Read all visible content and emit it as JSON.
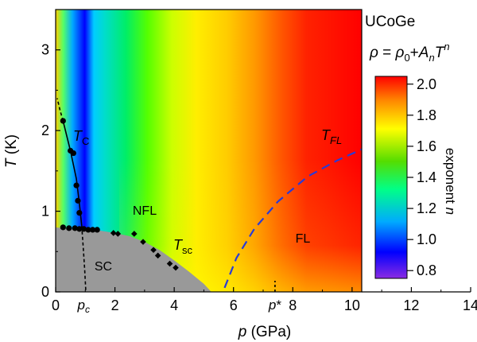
{
  "chart_data": {
    "type": "heatmap",
    "title": "UCoGe",
    "formula": {
      "rho": "ρ",
      "eq": " = ",
      "rho0": "ρ",
      "sub0": "0",
      "plus": "+",
      "A": "A",
      "subn": "n",
      "T": "T",
      "supn": "n"
    },
    "xlabel": {
      "var": "p",
      "unit": " (GPa)"
    },
    "ylabel": {
      "var": "T",
      "unit": " (K)"
    },
    "xlim": [
      0,
      14
    ],
    "ylim": [
      0,
      3.5
    ],
    "xticks": [
      "0",
      "2",
      "4",
      "6",
      "8",
      "10",
      "12",
      "14"
    ],
    "yticks": [
      "0",
      "1",
      "2",
      "3"
    ],
    "colorbar": {
      "label": {
        "text": "exponent ",
        "var": "n"
      },
      "range": [
        0.75,
        2.05
      ],
      "ticks": [
        "0.8",
        "1.0",
        "1.2",
        "1.4",
        "1.6",
        "1.8",
        "2.0"
      ],
      "tick_values": [
        0.8,
        1.0,
        1.2,
        1.4,
        1.6,
        1.8,
        2.0
      ],
      "colors": [
        "#8a2be2",
        "#0000ff",
        "#00aaff",
        "#00ff88",
        "#55dd00",
        "#ffff00",
        "#ff8800",
        "#ff0000"
      ]
    },
    "regions": {
      "sc": "SC",
      "nfl": "NFL",
      "fl": "FL"
    },
    "curve_labels": {
      "tc": {
        "main": "T",
        "sub": "C"
      },
      "tsc": {
        "main": "T",
        "sub": "sc"
      },
      "tfl": {
        "main": "T",
        "sub": "FL"
      }
    },
    "markers": {
      "pc": {
        "main": "p",
        "sub": "c",
        "x": 1.0
      },
      "pstar": {
        "main": "p",
        "sup": "*",
        "x": 7.4
      }
    },
    "series": [
      {
        "kind": "tc_points",
        "x": [
          0.25,
          0.5,
          0.6,
          0.7,
          0.75,
          0.8
        ],
        "y": [
          2.12,
          1.75,
          1.72,
          1.32,
          1.13,
          0.98
        ]
      },
      {
        "kind": "tc_fit",
        "x": [
          0.25,
          0.5,
          0.7,
          0.8,
          0.88
        ],
        "y": [
          2.12,
          1.75,
          1.4,
          1.1,
          0.82
        ]
      },
      {
        "kind": "tsc_points_low",
        "x": [
          0.25,
          0.45,
          0.65,
          0.8,
          0.95,
          1.1,
          1.25,
          1.4
        ],
        "y": [
          0.8,
          0.79,
          0.79,
          0.78,
          0.78,
          0.77,
          0.77,
          0.77
        ]
      },
      {
        "kind": "tsc_points_high",
        "x": [
          1.95,
          2.1,
          2.65,
          2.95,
          3.3,
          3.45,
          3.85,
          4.05
        ],
        "y": [
          0.73,
          0.72,
          0.72,
          0.62,
          0.52,
          0.45,
          0.35,
          0.3
        ]
      }
    ],
    "dashed_lines": {
      "tc_ext_high": {
        "x": [
          0.25,
          0.15,
          0.05
        ],
        "y": [
          2.12,
          2.25,
          2.4
        ]
      },
      "tc_ext_low": {
        "x": [
          0.88,
          0.93,
          0.98,
          1.02
        ],
        "y": [
          0.82,
          0.55,
          0.28,
          0.0
        ]
      },
      "tfl": {
        "x": [
          5.7,
          6.1,
          6.7,
          7.5,
          8.5,
          9.5,
          10.4
        ],
        "y": [
          0.05,
          0.42,
          0.78,
          1.12,
          1.43,
          1.63,
          1.78
        ]
      }
    },
    "sc_dome": {
      "x": [
        0,
        0.5,
        1.0,
        1.5,
        2.0,
        2.5,
        3.0,
        3.5,
        4.0,
        4.5,
        5.0,
        5.25,
        5.25,
        0
      ],
      "y": [
        0.8,
        0.78,
        0.77,
        0.76,
        0.73,
        0.69,
        0.62,
        0.52,
        0.39,
        0.25,
        0.1,
        0.0,
        0.0,
        0.0
      ]
    }
  }
}
